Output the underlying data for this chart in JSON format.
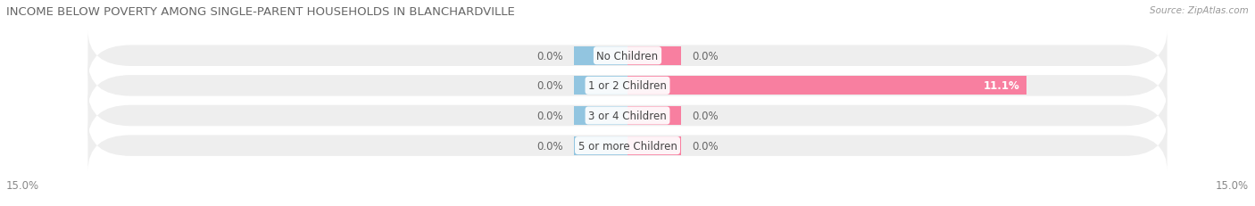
{
  "title": "INCOME BELOW POVERTY AMONG SINGLE-PARENT HOUSEHOLDS IN BLANCHARDVILLE",
  "source": "Source: ZipAtlas.com",
  "categories": [
    "No Children",
    "1 or 2 Children",
    "3 or 4 Children",
    "5 or more Children"
  ],
  "single_father": [
    0.0,
    0.0,
    0.0,
    0.0
  ],
  "single_mother": [
    0.0,
    11.1,
    0.0,
    0.0
  ],
  "father_color": "#92C5E0",
  "mother_color": "#F87FA0",
  "axis_max": 15.0,
  "axis_min": -15.0,
  "title_fontsize": 9.5,
  "source_fontsize": 7.5,
  "label_fontsize": 8.5,
  "cat_fontsize": 8.5,
  "legend_fontsize": 8.5,
  "background_color": "#FFFFFF",
  "bar_height": 0.62,
  "row_bg_color": "#EEEEEE",
  "stub_size": 1.5
}
